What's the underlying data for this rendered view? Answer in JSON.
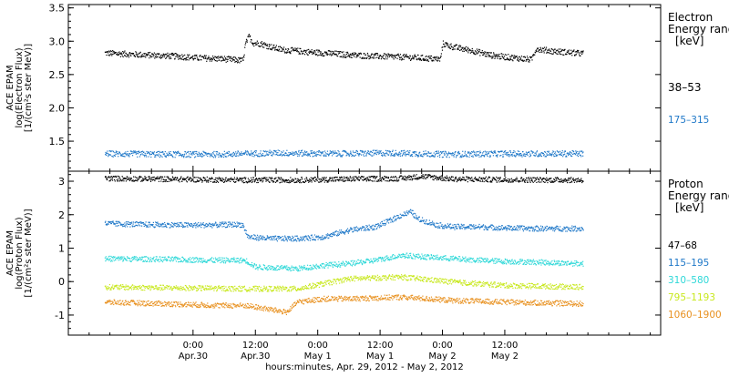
{
  "chart_data": [
    {
      "type": "scatter",
      "panel": "electron",
      "ylabel_lines": [
        "ACE EPAM",
        "log(Electron Flux)",
        "[1/(cm²s ster MeV)]"
      ],
      "ylim": [
        1.05,
        3.55
      ],
      "yticks": [
        "1.5",
        "2.0",
        "2.5",
        "3.0",
        "3.5"
      ],
      "ytick_values": [
        1.5,
        2.0,
        2.5,
        3.0,
        3.5
      ],
      "legend_title": [
        "Electron",
        "Energy range",
        "[keV]"
      ],
      "series": [
        {
          "name": "38–53",
          "color": "#000000",
          "x": [
            -17,
            -9,
            -3,
            0,
            3,
            6,
            9,
            9.6,
            10,
            10.7,
            11.5,
            13,
            15,
            17,
            20,
            23,
            27,
            30,
            33,
            36,
            40,
            43,
            47,
            47.5,
            48,
            50,
            54,
            57,
            59,
            64,
            65,
            66,
            67,
            69,
            72,
            75
          ],
          "y": [
            2.83,
            2.8,
            2.78,
            2.76,
            2.75,
            2.74,
            2.72,
            2.72,
            2.96,
            3.08,
            2.98,
            2.97,
            2.92,
            2.88,
            2.86,
            2.84,
            2.82,
            2.8,
            2.79,
            2.78,
            2.77,
            2.76,
            2.74,
            2.73,
            2.97,
            2.92,
            2.86,
            2.8,
            2.78,
            2.74,
            2.73,
            2.9,
            2.88,
            2.86,
            2.84,
            2.82
          ]
        },
        {
          "name": "175–315",
          "color": "#1f78c8",
          "x": [
            -17,
            -6,
            5,
            16,
            27,
            38,
            49,
            60,
            75
          ],
          "y": [
            1.32,
            1.31,
            1.31,
            1.33,
            1.32,
            1.33,
            1.31,
            1.32,
            1.32
          ]
        }
      ]
    },
    {
      "type": "scatter",
      "panel": "proton",
      "ylabel_lines": [
        "ACE EPAM",
        "log(Proton Flux)",
        "[1/(cm²s ster MeV)]"
      ],
      "ylim": [
        -1.6,
        3.3
      ],
      "yticks": [
        "-1",
        "0",
        "1",
        "2",
        "3"
      ],
      "ytick_values": [
        -1,
        0,
        1,
        2,
        3
      ],
      "legend_title": [
        "Proton",
        "Energy range",
        "[keV]"
      ],
      "series": [
        {
          "name": "47–68",
          "color": "#000000",
          "x": [
            -17,
            10,
            20,
            30,
            40,
            44,
            50,
            60,
            75
          ],
          "y": [
            3.1,
            3.05,
            3.05,
            3.08,
            3.1,
            3.16,
            3.08,
            3.06,
            3.05
          ]
        },
        {
          "name": "115–195",
          "color": "#1f78c8",
          "x": [
            -17,
            -10,
            0,
            9,
            9.5,
            10.5,
            15,
            20,
            25,
            30,
            35,
            38,
            40,
            42,
            43,
            45,
            47,
            50,
            55,
            60,
            65,
            75
          ],
          "y": [
            1.75,
            1.72,
            1.7,
            1.72,
            1.7,
            1.35,
            1.3,
            1.3,
            1.35,
            1.55,
            1.65,
            1.85,
            2.0,
            2.1,
            1.9,
            1.8,
            1.7,
            1.65,
            1.65,
            1.62,
            1.6,
            1.6
          ]
        },
        {
          "name": "310–580",
          "color": "#2ed8d8",
          "x": [
            -17,
            -5,
            5,
            10,
            12,
            20,
            25,
            30,
            35,
            40,
            45,
            50,
            55,
            60,
            65,
            75
          ],
          "y": [
            0.7,
            0.68,
            0.65,
            0.65,
            0.45,
            0.4,
            0.5,
            0.55,
            0.65,
            0.8,
            0.75,
            0.7,
            0.65,
            0.62,
            0.6,
            0.55
          ]
        },
        {
          "name": "795–1193",
          "color": "#c8e81e",
          "x": [
            -17,
            0,
            10,
            20,
            30,
            40,
            50,
            60,
            75
          ],
          "y": [
            -0.15,
            -0.18,
            -0.2,
            -0.2,
            0.1,
            0.15,
            0.0,
            -0.1,
            -0.15
          ]
        },
        {
          "name": "1060–1900",
          "color": "#e8901e",
          "x": [
            -17,
            -5,
            5,
            10,
            18,
            20,
            25,
            30,
            40,
            50,
            60,
            75
          ],
          "y": [
            -0.6,
            -0.65,
            -0.7,
            -0.7,
            -0.9,
            -0.6,
            -0.5,
            -0.5,
            -0.45,
            -0.55,
            -0.6,
            -0.65
          ]
        }
      ]
    }
  ],
  "x_axis": {
    "xlabel": "hours:minutes, Apr. 29, 2012 - May  2, 2012",
    "range_hours": [
      -24,
      90
    ],
    "ticks": [
      {
        "x": 0,
        "time": "0:00",
        "date": "Apr.30"
      },
      {
        "x": 12,
        "time": "12:00",
        "date": "Apr.30"
      },
      {
        "x": 24,
        "time": "0:00",
        "date": "May 1"
      },
      {
        "x": 36,
        "time": "12:00",
        "date": "May 1"
      },
      {
        "x": 48,
        "time": "0:00",
        "date": "May 2"
      },
      {
        "x": 60,
        "time": "12:00",
        "date": "May 2"
      }
    ]
  }
}
